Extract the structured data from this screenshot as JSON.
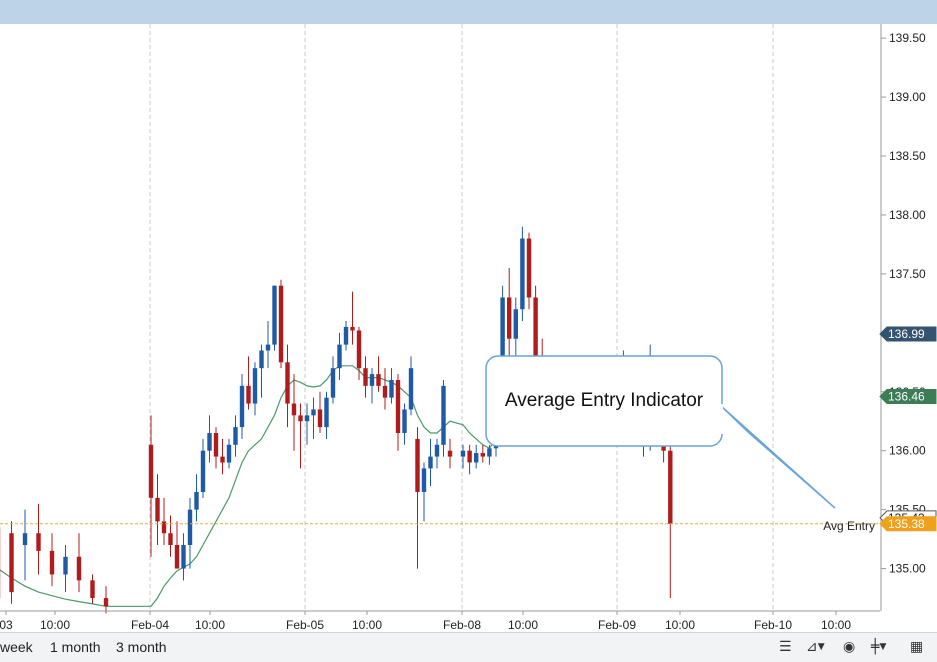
{
  "chart_data": {
    "type": "candlestick",
    "y_axis": {
      "ticks": [
        135.0,
        135.5,
        136.0,
        136.5,
        137.0,
        137.5,
        138.0,
        138.5,
        139.0,
        139.5
      ],
      "tick_labels": [
        "135.00",
        "135.50",
        "136.00",
        "136.50",
        "137.00",
        "137.50",
        "138.00",
        "138.50",
        "139.00",
        "139.50"
      ],
      "range": [
        134.64,
        139.62
      ],
      "side": "right"
    },
    "x_axis": {
      "labels": [
        "03",
        "10:00",
        "Feb-04",
        "10:00",
        "Feb-05",
        "10:00",
        "Feb-08",
        "10:00",
        "Feb-09",
        "10:00",
        "Feb-10",
        "10:00"
      ],
      "day_boundaries": [
        "Feb-04",
        "Feb-05",
        "Feb-08",
        "Feb-09",
        "Feb-10"
      ]
    },
    "candles": [
      [
        135.35,
        135.4,
        134.7,
        134.75
      ],
      [
        135.3,
        135.4,
        134.7,
        134.8
      ],
      [
        135.2,
        135.5,
        134.9,
        135.3
      ],
      [
        135.3,
        135.55,
        134.95,
        135.15
      ],
      [
        135.15,
        135.3,
        134.85,
        134.95
      ],
      [
        134.95,
        135.2,
        134.8,
        135.1
      ],
      [
        135.1,
        135.3,
        134.8,
        134.9
      ],
      [
        134.9,
        134.95,
        134.7,
        134.75
      ],
      [
        134.75,
        134.85,
        134.62,
        134.68
      ],
      [
        136.05,
        136.3,
        135.1,
        135.6
      ],
      [
        135.6,
        135.8,
        135.2,
        135.4
      ],
      [
        135.4,
        135.6,
        135.2,
        135.3
      ],
      [
        135.3,
        135.45,
        135.1,
        135.2
      ],
      [
        135.2,
        135.4,
        135.0,
        135.0
      ],
      [
        135.0,
        135.3,
        134.9,
        135.2
      ],
      [
        135.2,
        135.6,
        135.0,
        135.5
      ],
      [
        135.5,
        135.8,
        135.4,
        135.65
      ],
      [
        135.65,
        136.1,
        135.6,
        136.0
      ],
      [
        136.0,
        136.3,
        135.9,
        136.15
      ],
      [
        136.15,
        136.2,
        135.85,
        135.95
      ],
      [
        135.95,
        136.1,
        135.8,
        135.9
      ],
      [
        135.9,
        136.1,
        135.85,
        136.05
      ],
      [
        136.05,
        136.3,
        135.95,
        136.2
      ],
      [
        136.2,
        136.65,
        136.1,
        136.55
      ],
      [
        136.55,
        136.8,
        136.35,
        136.4
      ],
      [
        136.4,
        136.75,
        136.3,
        136.7
      ],
      [
        136.7,
        136.9,
        136.45,
        136.85
      ],
      [
        136.85,
        137.1,
        136.7,
        136.9
      ],
      [
        136.9,
        137.4,
        136.85,
        137.4
      ],
      [
        137.4,
        137.45,
        136.7,
        136.75
      ],
      [
        136.75,
        136.9,
        136.2,
        136.4
      ],
      [
        136.4,
        136.65,
        136.0,
        136.3
      ],
      [
        136.3,
        136.4,
        135.85,
        136.25
      ],
      [
        136.25,
        136.4,
        136.05,
        136.3
      ],
      [
        136.3,
        136.45,
        136.1,
        136.35
      ],
      [
        136.35,
        136.5,
        136.15,
        136.2
      ],
      [
        136.2,
        136.5,
        136.1,
        136.45
      ],
      [
        136.45,
        136.8,
        136.4,
        136.7
      ],
      [
        136.7,
        137.0,
        136.6,
        136.9
      ],
      [
        136.9,
        137.1,
        136.85,
        137.05
      ],
      [
        137.05,
        137.35,
        136.9,
        137.02
      ],
      [
        137.02,
        137.05,
        136.6,
        136.7
      ],
      [
        136.7,
        136.8,
        136.45,
        136.55
      ],
      [
        136.55,
        136.7,
        136.4,
        136.65
      ],
      [
        136.65,
        136.8,
        136.5,
        136.55
      ],
      [
        136.55,
        136.7,
        136.35,
        136.45
      ],
      [
        136.45,
        136.7,
        136.4,
        136.6
      ],
      [
        136.6,
        136.65,
        136.0,
        136.15
      ],
      [
        136.15,
        136.4,
        136.05,
        136.35
      ],
      [
        136.35,
        136.8,
        136.3,
        136.7
      ],
      [
        136.1,
        136.2,
        135.0,
        135.65
      ],
      [
        135.65,
        135.9,
        135.4,
        135.85
      ],
      [
        135.85,
        136.1,
        135.7,
        135.95
      ],
      [
        135.95,
        136.1,
        135.85,
        136.05
      ],
      [
        136.05,
        136.6,
        135.95,
        136.55
      ],
      [
        136.0,
        136.1,
        135.85,
        135.95
      ],
      [
        135.95,
        136.05,
        135.85,
        136.0
      ],
      [
        136.0,
        136.05,
        135.8,
        135.9
      ],
      [
        135.9,
        136.05,
        135.85,
        135.98
      ],
      [
        135.98,
        136.05,
        135.9,
        135.95
      ],
      [
        135.95,
        136.05,
        135.88,
        136.02
      ],
      [
        136.02,
        136.7,
        135.95,
        136.6
      ],
      [
        136.6,
        137.4,
        136.5,
        137.3
      ],
      [
        137.3,
        137.55,
        136.8,
        136.95
      ],
      [
        136.95,
        137.3,
        136.7,
        137.2
      ],
      [
        137.2,
        137.9,
        137.1,
        137.8
      ],
      [
        137.8,
        137.85,
        137.2,
        137.3
      ],
      [
        137.3,
        137.4,
        136.7,
        136.8
      ],
      [
        136.8,
        136.95,
        136.6,
        136.7
      ],
      [
        136.7,
        136.8,
        136.55,
        136.65
      ],
      [
        136.4,
        136.7,
        136.35,
        136.65
      ],
      [
        136.65,
        136.75,
        136.5,
        136.68
      ],
      [
        136.68,
        136.8,
        136.55,
        136.75
      ],
      [
        136.75,
        136.85,
        136.6,
        136.8
      ],
      [
        136.7,
        136.75,
        136.4,
        136.45
      ],
      [
        136.45,
        136.6,
        136.2,
        136.3
      ],
      [
        136.3,
        136.45,
        135.95,
        136.05
      ],
      [
        136.05,
        136.9,
        136.0,
        136.6
      ],
      [
        136.6,
        136.7,
        136.3,
        136.4
      ],
      [
        136.4,
        136.7,
        135.9,
        136.0
      ],
      [
        136.0,
        136.1,
        134.75,
        135.38
      ]
    ],
    "moving_average": [
      135.0,
      134.92,
      134.85,
      134.8,
      134.77,
      134.74,
      134.72,
      134.7,
      134.68,
      134.68,
      134.75,
      134.85,
      134.92,
      134.98,
      135.01,
      135.04,
      135.1,
      135.2,
      135.3,
      135.4,
      135.5,
      135.6,
      135.75,
      135.9,
      136.0,
      136.05,
      136.1,
      136.2,
      136.3,
      136.45,
      136.55,
      136.6,
      136.58,
      136.55,
      136.54,
      136.55,
      136.6,
      136.68,
      136.72,
      136.72,
      136.72,
      136.68,
      136.62,
      136.62,
      136.62,
      136.6,
      136.58,
      136.55,
      136.5,
      136.45,
      136.3,
      136.2,
      136.15,
      136.15,
      136.2,
      136.25,
      136.22,
      136.15,
      136.1,
      136.05,
      136.02,
      136.1,
      136.3,
      136.5,
      136.62,
      136.72,
      136.78,
      136.8,
      136.78,
      136.75,
      136.76,
      136.78,
      136.78,
      136.76,
      136.72,
      136.68,
      136.6,
      136.55,
      136.5,
      136.45,
      136.4
    ],
    "avg_entry": 135.38,
    "avg_entry_label": "Avg Entry",
    "price_badges": [
      {
        "value": "136.99",
        "level": 136.99,
        "color": "#34536e"
      },
      {
        "value": "136.46",
        "level": 136.46,
        "color": "#3c7d55"
      },
      {
        "value": "135.43",
        "level": 135.43,
        "color": "#ffffff"
      },
      {
        "value": "135.38",
        "level": 135.38,
        "color": "#f0a01a"
      }
    ],
    "colors": {
      "up": "#1f5aa6",
      "down": "#b01c1c",
      "ma": "#4a9a6a",
      "avg_entry": "#e3a845",
      "grid": "#c8c8c8"
    },
    "grid": true
  },
  "annotation": {
    "text": "Average Entry Indicator"
  },
  "bottom_bar": {
    "ranges": [
      "week",
      "1 month",
      "3 month"
    ],
    "tools": [
      {
        "icon": "list-icon"
      },
      {
        "icon": "chart-type-icon"
      },
      {
        "icon": "eye-icon"
      },
      {
        "icon": "draw-tools-icon"
      },
      {
        "icon": "calendar-icon"
      }
    ]
  }
}
